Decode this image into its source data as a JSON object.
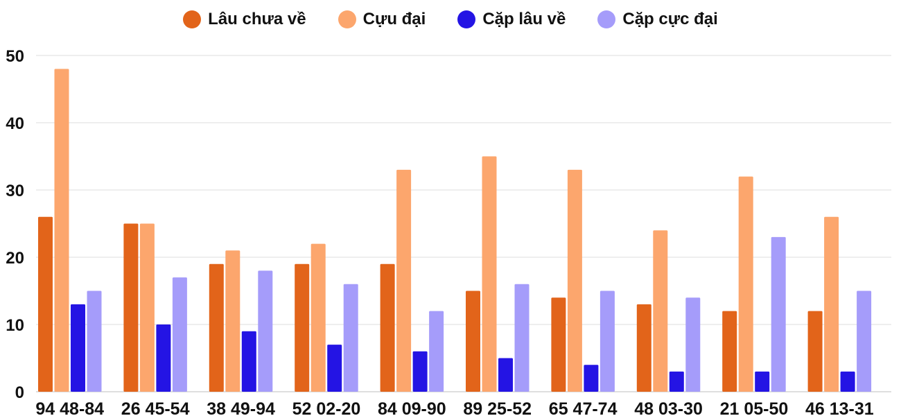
{
  "chart_data": {
    "type": "bar",
    "categories": [
      "94 48-84",
      "26 45-54",
      "38 49-94",
      "52 02-20",
      "84 09-90",
      "89 25-52",
      "65 47-74",
      "48 03-30",
      "21 05-50",
      "46 13-31"
    ],
    "series": [
      {
        "name": "Lâu chưa về",
        "color": "#e2641a",
        "values": [
          26,
          25,
          19,
          19,
          19,
          15,
          14,
          13,
          12,
          12
        ]
      },
      {
        "name": "Cựu đại",
        "color": "#fca66d",
        "values": [
          48,
          25,
          21,
          22,
          33,
          35,
          33,
          24,
          32,
          26
        ]
      },
      {
        "name": "Cặp lâu về",
        "color": "#2414e4",
        "values": [
          13,
          10,
          9,
          7,
          6,
          5,
          4,
          3,
          3,
          3
        ]
      },
      {
        "name": "Cặp cực đại",
        "color": "#a59cfa",
        "values": [
          15,
          17,
          18,
          16,
          12,
          16,
          15,
          14,
          23,
          15
        ]
      }
    ],
    "yticks": [
      0,
      10,
      20,
      30,
      40,
      50
    ],
    "ylim": [
      0,
      50
    ],
    "grid": true,
    "legend_position": "top-center"
  }
}
